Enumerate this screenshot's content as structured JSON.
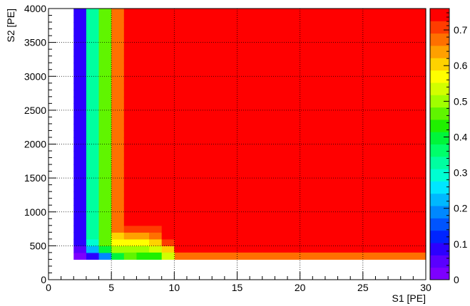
{
  "chart_data": {
    "type": "heatmap",
    "title": "",
    "xlabel": "S1 [PE]",
    "ylabel": "S2 [PE]",
    "xlim": [
      0,
      30
    ],
    "ylim": [
      0,
      4000
    ],
    "grid": true,
    "x_ticks": [
      0,
      5,
      10,
      15,
      20,
      25,
      30
    ],
    "y_ticks": [
      0,
      500,
      1000,
      1500,
      2000,
      2500,
      3000,
      3500,
      4000
    ],
    "colorbar": {
      "min": 0,
      "max": 0.76,
      "ticks": [
        0,
        0.1,
        0.2,
        0.3,
        0.4,
        0.5,
        0.6,
        0.7
      ],
      "palette": [
        "#7d00ff",
        "#5a00ff",
        "#2c00ff",
        "#0024ff",
        "#0054ff",
        "#0088ff",
        "#00b8ff",
        "#00e6ff",
        "#00ffd2",
        "#00ffa0",
        "#00ff6a",
        "#00f53a",
        "#20f000",
        "#60f500",
        "#a0ff00",
        "#d2ff00",
        "#ffff00",
        "#ffd200",
        "#ffa000",
        "#ff7000",
        "#ff3c00",
        "#ff0000"
      ]
    },
    "x_bin_width": 1,
    "y_bin_width": 100,
    "cell_regions": [
      {
        "x": [
          2,
          3
        ],
        "y": [
          300,
          4000
        ],
        "value": 0.08
      },
      {
        "x": [
          3,
          4
        ],
        "y": [
          300,
          4000
        ],
        "value": 0.32
      },
      {
        "x": [
          4,
          5
        ],
        "y": [
          300,
          4000
        ],
        "value": 0.45
      },
      {
        "x": [
          5,
          6
        ],
        "y": [
          300,
          4000
        ],
        "value": 0.66
      },
      {
        "x": [
          6,
          30
        ],
        "y": [
          400,
          4000
        ],
        "value": 0.76
      },
      {
        "x": [
          10,
          30
        ],
        "y": [
          300,
          400
        ],
        "value": 0.66
      }
    ],
    "cell_overrides": [
      {
        "x": 2,
        "y": 300,
        "value": 0.03
      },
      {
        "x": 2,
        "y": 400,
        "value": 0.06
      },
      {
        "x": 3,
        "y": 300,
        "value": 0.1
      },
      {
        "x": 3,
        "y": 400,
        "value": 0.22
      },
      {
        "x": 3,
        "y": 500,
        "value": 0.28
      },
      {
        "x": 4,
        "y": 300,
        "value": 0.18
      },
      {
        "x": 4,
        "y": 400,
        "value": 0.38
      },
      {
        "x": 5,
        "y": 300,
        "value": 0.38
      },
      {
        "x": 5,
        "y": 400,
        "value": 0.5
      },
      {
        "x": 5,
        "y": 500,
        "value": 0.56
      },
      {
        "x": 5,
        "y": 600,
        "value": 0.6
      },
      {
        "x": 6,
        "y": 300,
        "value": 0.45
      },
      {
        "x": 6,
        "y": 400,
        "value": 0.5
      },
      {
        "x": 6,
        "y": 500,
        "value": 0.58
      },
      {
        "x": 6,
        "y": 600,
        "value": 0.63
      },
      {
        "x": 6,
        "y": 700,
        "value": 0.7
      },
      {
        "x": 7,
        "y": 300,
        "value": 0.42
      },
      {
        "x": 7,
        "y": 400,
        "value": 0.5
      },
      {
        "x": 7,
        "y": 500,
        "value": 0.58
      },
      {
        "x": 7,
        "y": 600,
        "value": 0.64
      },
      {
        "x": 7,
        "y": 700,
        "value": 0.7
      },
      {
        "x": 8,
        "y": 300,
        "value": 0.44
      },
      {
        "x": 8,
        "y": 400,
        "value": 0.52
      },
      {
        "x": 8,
        "y": 500,
        "value": 0.6
      },
      {
        "x": 8,
        "y": 600,
        "value": 0.66
      },
      {
        "x": 8,
        "y": 700,
        "value": 0.7
      },
      {
        "x": 9,
        "y": 300,
        "value": 0.52
      },
      {
        "x": 9,
        "y": 400,
        "value": 0.6
      },
      {
        "x": 9,
        "y": 500,
        "value": 0.7
      }
    ]
  }
}
